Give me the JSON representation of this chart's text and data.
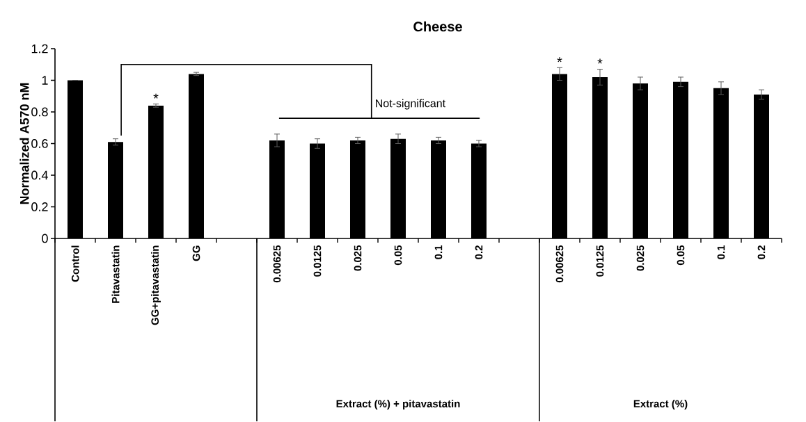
{
  "chart_data": {
    "type": "bar",
    "title": "Cheese",
    "ylabel": "Normalized A570 nM",
    "categories": [
      "Control",
      "Pitavastatin",
      "GG+pitavastatin",
      "GG",
      null,
      "0.00625",
      "0.0125",
      "0.025",
      "0.05",
      "0.1",
      "0.2",
      null,
      "0.00625",
      "0.0125",
      "0.025",
      "0.05",
      "0.1",
      "0.2"
    ],
    "values": [
      1.0,
      0.61,
      0.84,
      1.04,
      null,
      0.62,
      0.6,
      0.62,
      0.63,
      0.62,
      0.6,
      null,
      1.04,
      1.02,
      0.98,
      0.99,
      0.95,
      0.91
    ],
    "errors": [
      0,
      0.02,
      0.01,
      0.01,
      null,
      0.04,
      0.03,
      0.02,
      0.03,
      0.02,
      0.02,
      null,
      0.04,
      0.05,
      0.04,
      0.03,
      0.04,
      0.03
    ],
    "value_labels": [
      null,
      null,
      "*",
      null,
      null,
      null,
      null,
      null,
      null,
      null,
      null,
      null,
      "*",
      "*",
      null,
      null,
      null,
      null
    ],
    "color": "#000000",
    "ylim": [
      0,
      1.2
    ],
    "yticks": [
      0,
      0.2,
      0.4,
      0.6,
      0.8,
      1,
      1.2
    ],
    "annotations": [
      "Not-significant",
      "Extract (%) + pitavastatin",
      "Extract (%)"
    ],
    "grid": false
  }
}
